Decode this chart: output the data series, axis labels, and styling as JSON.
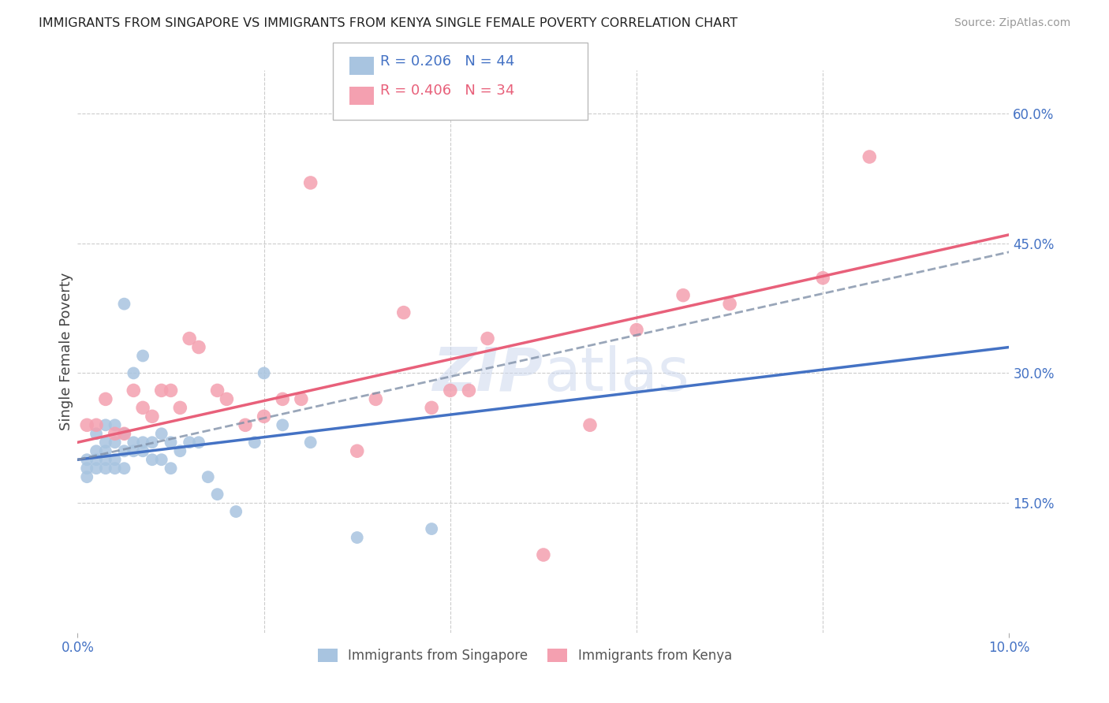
{
  "title": "IMMIGRANTS FROM SINGAPORE VS IMMIGRANTS FROM KENYA SINGLE FEMALE POVERTY CORRELATION CHART",
  "source": "Source: ZipAtlas.com",
  "ylabel": "Single Female Poverty",
  "xlim": [
    0.0,
    0.1
  ],
  "ylim": [
    0.0,
    0.65
  ],
  "yticks_right": [
    0.15,
    0.3,
    0.45,
    0.6
  ],
  "ytick_labels_right": [
    "15.0%",
    "30.0%",
    "45.0%",
    "60.0%"
  ],
  "legend1_r": "R = 0.206",
  "legend1_n": "N = 44",
  "legend2_r": "R = 0.406",
  "legend2_n": "N = 34",
  "legend1_label": "Immigrants from Singapore",
  "legend2_label": "Immigrants from Kenya",
  "singapore_color": "#a8c4e0",
  "kenya_color": "#f4a0b0",
  "trend_singapore_color": "#4472c4",
  "trend_kenya_color": "#e8607a",
  "dashed_color": "#8090a8",
  "watermark": "ZIPatlas",
  "watermark_color": "#ccd8ee",
  "background_color": "#ffffff",
  "grid_color": "#cccccc",
  "axis_label_color": "#4472c4",
  "title_color": "#222222",
  "singapore_x": [
    0.001,
    0.001,
    0.001,
    0.002,
    0.002,
    0.002,
    0.002,
    0.003,
    0.003,
    0.003,
    0.003,
    0.003,
    0.004,
    0.004,
    0.004,
    0.004,
    0.005,
    0.005,
    0.005,
    0.005,
    0.006,
    0.006,
    0.006,
    0.007,
    0.007,
    0.007,
    0.008,
    0.008,
    0.009,
    0.009,
    0.01,
    0.01,
    0.011,
    0.012,
    0.013,
    0.014,
    0.015,
    0.017,
    0.019,
    0.02,
    0.022,
    0.025,
    0.03,
    0.038
  ],
  "singapore_y": [
    0.2,
    0.19,
    0.18,
    0.23,
    0.21,
    0.2,
    0.19,
    0.24,
    0.22,
    0.21,
    0.2,
    0.19,
    0.24,
    0.22,
    0.2,
    0.19,
    0.38,
    0.23,
    0.21,
    0.19,
    0.3,
    0.22,
    0.21,
    0.32,
    0.22,
    0.21,
    0.22,
    0.2,
    0.23,
    0.2,
    0.22,
    0.19,
    0.21,
    0.22,
    0.22,
    0.18,
    0.16,
    0.14,
    0.22,
    0.3,
    0.24,
    0.22,
    0.11,
    0.12
  ],
  "kenya_x": [
    0.001,
    0.002,
    0.003,
    0.004,
    0.005,
    0.006,
    0.007,
    0.008,
    0.009,
    0.01,
    0.011,
    0.012,
    0.013,
    0.015,
    0.016,
    0.018,
    0.02,
    0.022,
    0.024,
    0.025,
    0.03,
    0.032,
    0.035,
    0.038,
    0.04,
    0.042,
    0.044,
    0.05,
    0.055,
    0.06,
    0.065,
    0.07,
    0.08,
    0.085
  ],
  "kenya_y": [
    0.24,
    0.24,
    0.27,
    0.23,
    0.23,
    0.28,
    0.26,
    0.25,
    0.28,
    0.28,
    0.26,
    0.34,
    0.33,
    0.28,
    0.27,
    0.24,
    0.25,
    0.27,
    0.27,
    0.52,
    0.21,
    0.27,
    0.37,
    0.26,
    0.28,
    0.28,
    0.34,
    0.09,
    0.24,
    0.35,
    0.39,
    0.38,
    0.41,
    0.55
  ],
  "sg_trend_x0": 0.0,
  "sg_trend_y0": 0.2,
  "sg_trend_x1": 0.1,
  "sg_trend_y1": 0.33,
  "ke_trend_x0": 0.0,
  "ke_trend_y0": 0.22,
  "ke_trend_x1": 0.1,
  "ke_trend_y1": 0.46,
  "dash_trend_x0": 0.0,
  "dash_trend_y0": 0.2,
  "dash_trend_x1": 0.1,
  "dash_trend_y1": 0.44
}
